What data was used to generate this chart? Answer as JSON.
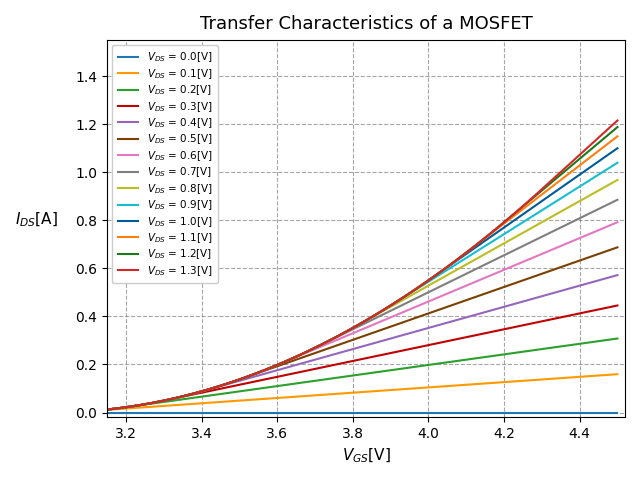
{
  "title": "Transfer Characteristics of a MOSFET",
  "xlabel": "$V_{GS}$[V]",
  "ylabel": "$I_{DS}$[A]",
  "VGS_min": 3.1,
  "VGS_max": 4.5,
  "VDS_values": [
    0.0,
    0.1,
    0.2,
    0.3,
    0.4,
    0.5,
    0.6,
    0.7,
    0.8,
    0.9,
    1.0,
    1.1,
    1.2,
    1.3
  ],
  "Vth": 3.0,
  "k": 1.0,
  "ylim_min": -0.02,
  "ylim_max": 1.55,
  "xlim_min": 3.15,
  "xlim_max": 4.52,
  "xticks": [
    3.2,
    3.4,
    3.6,
    3.8,
    4.0,
    4.2,
    4.4
  ],
  "yticks": [
    0.0,
    0.2,
    0.4,
    0.6,
    0.8,
    1.0,
    1.2,
    1.4
  ],
  "line_colors": [
    "#1f77b4",
    "#ff9900",
    "#2ca02c",
    "#c00000",
    "#9467bd",
    "#7b3f00",
    "#e377c2",
    "#7f7f7f",
    "#bcbd22",
    "#17becf",
    "#005b9a",
    "#ff7f0e",
    "#1a7a1a",
    "#d62728"
  ],
  "legend_labels": [
    "$V_{DS}$ = 0.0[V]",
    "$V_{DS}$ = 0.1[V]",
    "$V_{DS}$ = 0.2[V]",
    "$V_{DS}$ = 0.3[V]",
    "$V_{DS}$ = 0.4[V]",
    "$V_{DS}$ = 0.5[V]",
    "$V_{DS}$ = 0.6[V]",
    "$V_{DS}$ = 0.7[V]",
    "$V_{DS}$ = 0.8[V]",
    "$V_{DS}$ = 0.9[V]",
    "$V_{DS}$ = 1.0[V]",
    "$V_{DS}$ = 1.1[V]",
    "$V_{DS}$ = 1.2[V]",
    "$V_{DS}$ = 1.3[V]"
  ],
  "figsize": [
    6.4,
    4.8
  ],
  "dpi": 100
}
